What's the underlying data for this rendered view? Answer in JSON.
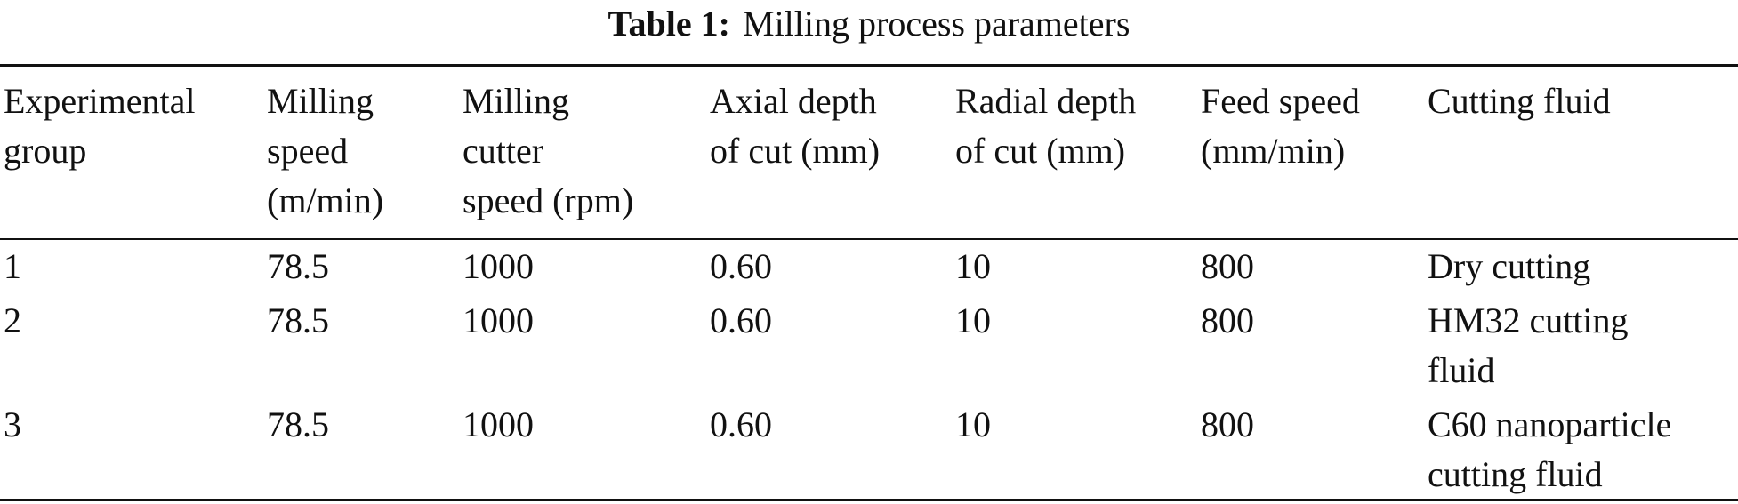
{
  "caption": {
    "label": "Table 1:",
    "title": "Milling process parameters"
  },
  "table": {
    "headers": [
      "Experimental\ngroup",
      "Milling\nspeed\n(m/min)",
      "Milling\ncutter\nspeed (rpm)",
      "Axial depth\nof cut (mm)",
      "Radial depth\nof cut (mm)",
      "Feed speed\n(mm/min)",
      "Cutting fluid"
    ],
    "rows": [
      [
        "1",
        "78.5",
        "1000",
        "0.60",
        "10",
        "800",
        "Dry cutting"
      ],
      [
        "2",
        "78.5",
        "1000",
        "0.60",
        "10",
        "800",
        "HM32 cutting\nfluid"
      ],
      [
        "3",
        "78.5",
        "1000",
        "0.60",
        "10",
        "800",
        "C60 nanoparticle\ncutting fluid"
      ]
    ]
  }
}
